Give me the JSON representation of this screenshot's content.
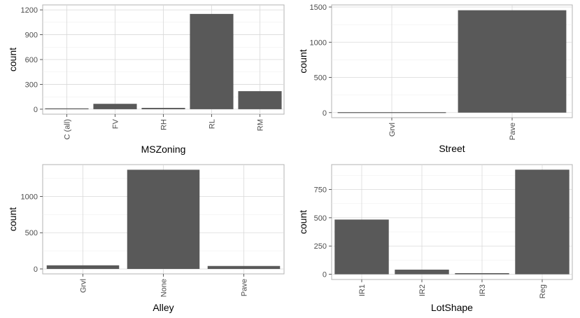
{
  "chart_data": [
    {
      "type": "bar",
      "xlabel": "MSZoning",
      "ylabel": "count",
      "categories": [
        "C (all)",
        "FV",
        "RH",
        "RL",
        "RM"
      ],
      "values": [
        10,
        65,
        16,
        1151,
        218
      ],
      "ylim": [
        -60,
        1260
      ],
      "yticks": [
        0,
        300,
        600,
        900,
        1200
      ],
      "bar_color": "#595959",
      "grid": true,
      "x_tick_rotation": -90
    },
    {
      "type": "bar",
      "xlabel": "Street",
      "ylabel": "count",
      "categories": [
        "Grvl",
        "Pave"
      ],
      "values": [
        6,
        1454
      ],
      "ylim": [
        -72,
        1530
      ],
      "yticks": [
        0,
        500,
        1000,
        1500
      ],
      "bar_color": "#595959",
      "grid": true,
      "x_tick_rotation": -90
    },
    {
      "type": "bar",
      "xlabel": "Alley",
      "ylabel": "count",
      "categories": [
        "Grvl",
        "None",
        "Pave"
      ],
      "values": [
        50,
        1369,
        41
      ],
      "ylim": [
        -68,
        1440
      ],
      "yticks": [
        0,
        500,
        1000
      ],
      "bar_color": "#595959",
      "grid": true,
      "x_tick_rotation": -90
    },
    {
      "type": "bar",
      "xlabel": "LotShape",
      "ylabel": "count",
      "categories": [
        "IR1",
        "IR2",
        "IR3",
        "Reg"
      ],
      "values": [
        484,
        41,
        10,
        925
      ],
      "ylim": [
        -46,
        970
      ],
      "yticks": [
        0,
        250,
        500,
        750
      ],
      "bar_color": "#595959",
      "grid": true,
      "x_tick_rotation": -90
    }
  ]
}
